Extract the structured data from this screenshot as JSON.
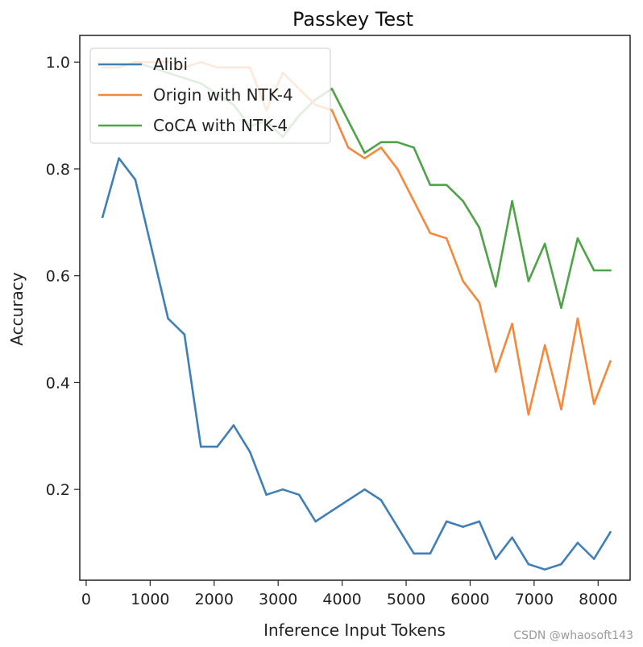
{
  "chart_data": {
    "type": "line",
    "title": "Passkey Test",
    "xlabel": "Inference Input Tokens",
    "ylabel": "Accuracy",
    "xlim": [
      -100,
      8500
    ],
    "ylim": [
      0.03,
      1.05
    ],
    "xticks": [
      0,
      1000,
      2000,
      3000,
      4000,
      5000,
      6000,
      7000,
      8000
    ],
    "xtick_labels": [
      "0",
      "1000",
      "2000",
      "3000",
      "4000",
      "5000",
      "6000",
      "7000",
      "8000"
    ],
    "yticks": [
      0.2,
      0.4,
      0.6,
      0.8,
      1.0
    ],
    "ytick_labels": [
      "0.2",
      "0.4",
      "0.6",
      "0.8",
      "1.0"
    ],
    "legend_position": "top-left",
    "x": [
      256,
      512,
      768,
      1024,
      1280,
      1536,
      1792,
      2048,
      2304,
      2560,
      2816,
      3072,
      3328,
      3584,
      3840,
      4096,
      4352,
      4608,
      4864,
      5120,
      5376,
      5632,
      5888,
      6144,
      6400,
      6656,
      6912,
      7168,
      7424,
      7680,
      7936,
      8192
    ],
    "series": [
      {
        "name": "Alibi",
        "color": "#3f7fb8",
        "values": [
          0.71,
          0.82,
          0.78,
          0.65,
          0.52,
          0.49,
          0.28,
          0.28,
          0.32,
          0.27,
          0.19,
          0.2,
          0.19,
          0.14,
          0.16,
          0.18,
          0.2,
          0.18,
          0.13,
          0.08,
          0.08,
          0.14,
          0.13,
          0.14,
          0.07,
          0.11,
          0.06,
          0.05,
          0.06,
          0.1,
          0.07,
          0.12
        ]
      },
      {
        "name": "Origin with NTK-4",
        "color": "#f5883a",
        "values": [
          0.99,
          0.99,
          1.0,
          1.0,
          1.0,
          0.99,
          1.0,
          0.99,
          0.99,
          0.99,
          0.91,
          0.98,
          0.95,
          0.92,
          0.91,
          0.84,
          0.82,
          0.84,
          0.8,
          0.74,
          0.68,
          0.67,
          0.59,
          0.55,
          0.42,
          0.51,
          0.34,
          0.47,
          0.35,
          0.52,
          0.36,
          0.44
        ]
      },
      {
        "name": "CoCA with NTK-4",
        "color": "#4ea347",
        "values": [
          0.99,
          0.99,
          1.0,
          0.99,
          0.98,
          0.97,
          0.96,
          0.94,
          0.92,
          0.88,
          0.89,
          0.86,
          0.9,
          0.93,
          0.95,
          0.89,
          0.83,
          0.85,
          0.85,
          0.84,
          0.77,
          0.77,
          0.74,
          0.69,
          0.58,
          0.74,
          0.59,
          0.66,
          0.54,
          0.67,
          0.61,
          0.61
        ]
      }
    ]
  },
  "watermark": "CSDN @whaosoft143"
}
